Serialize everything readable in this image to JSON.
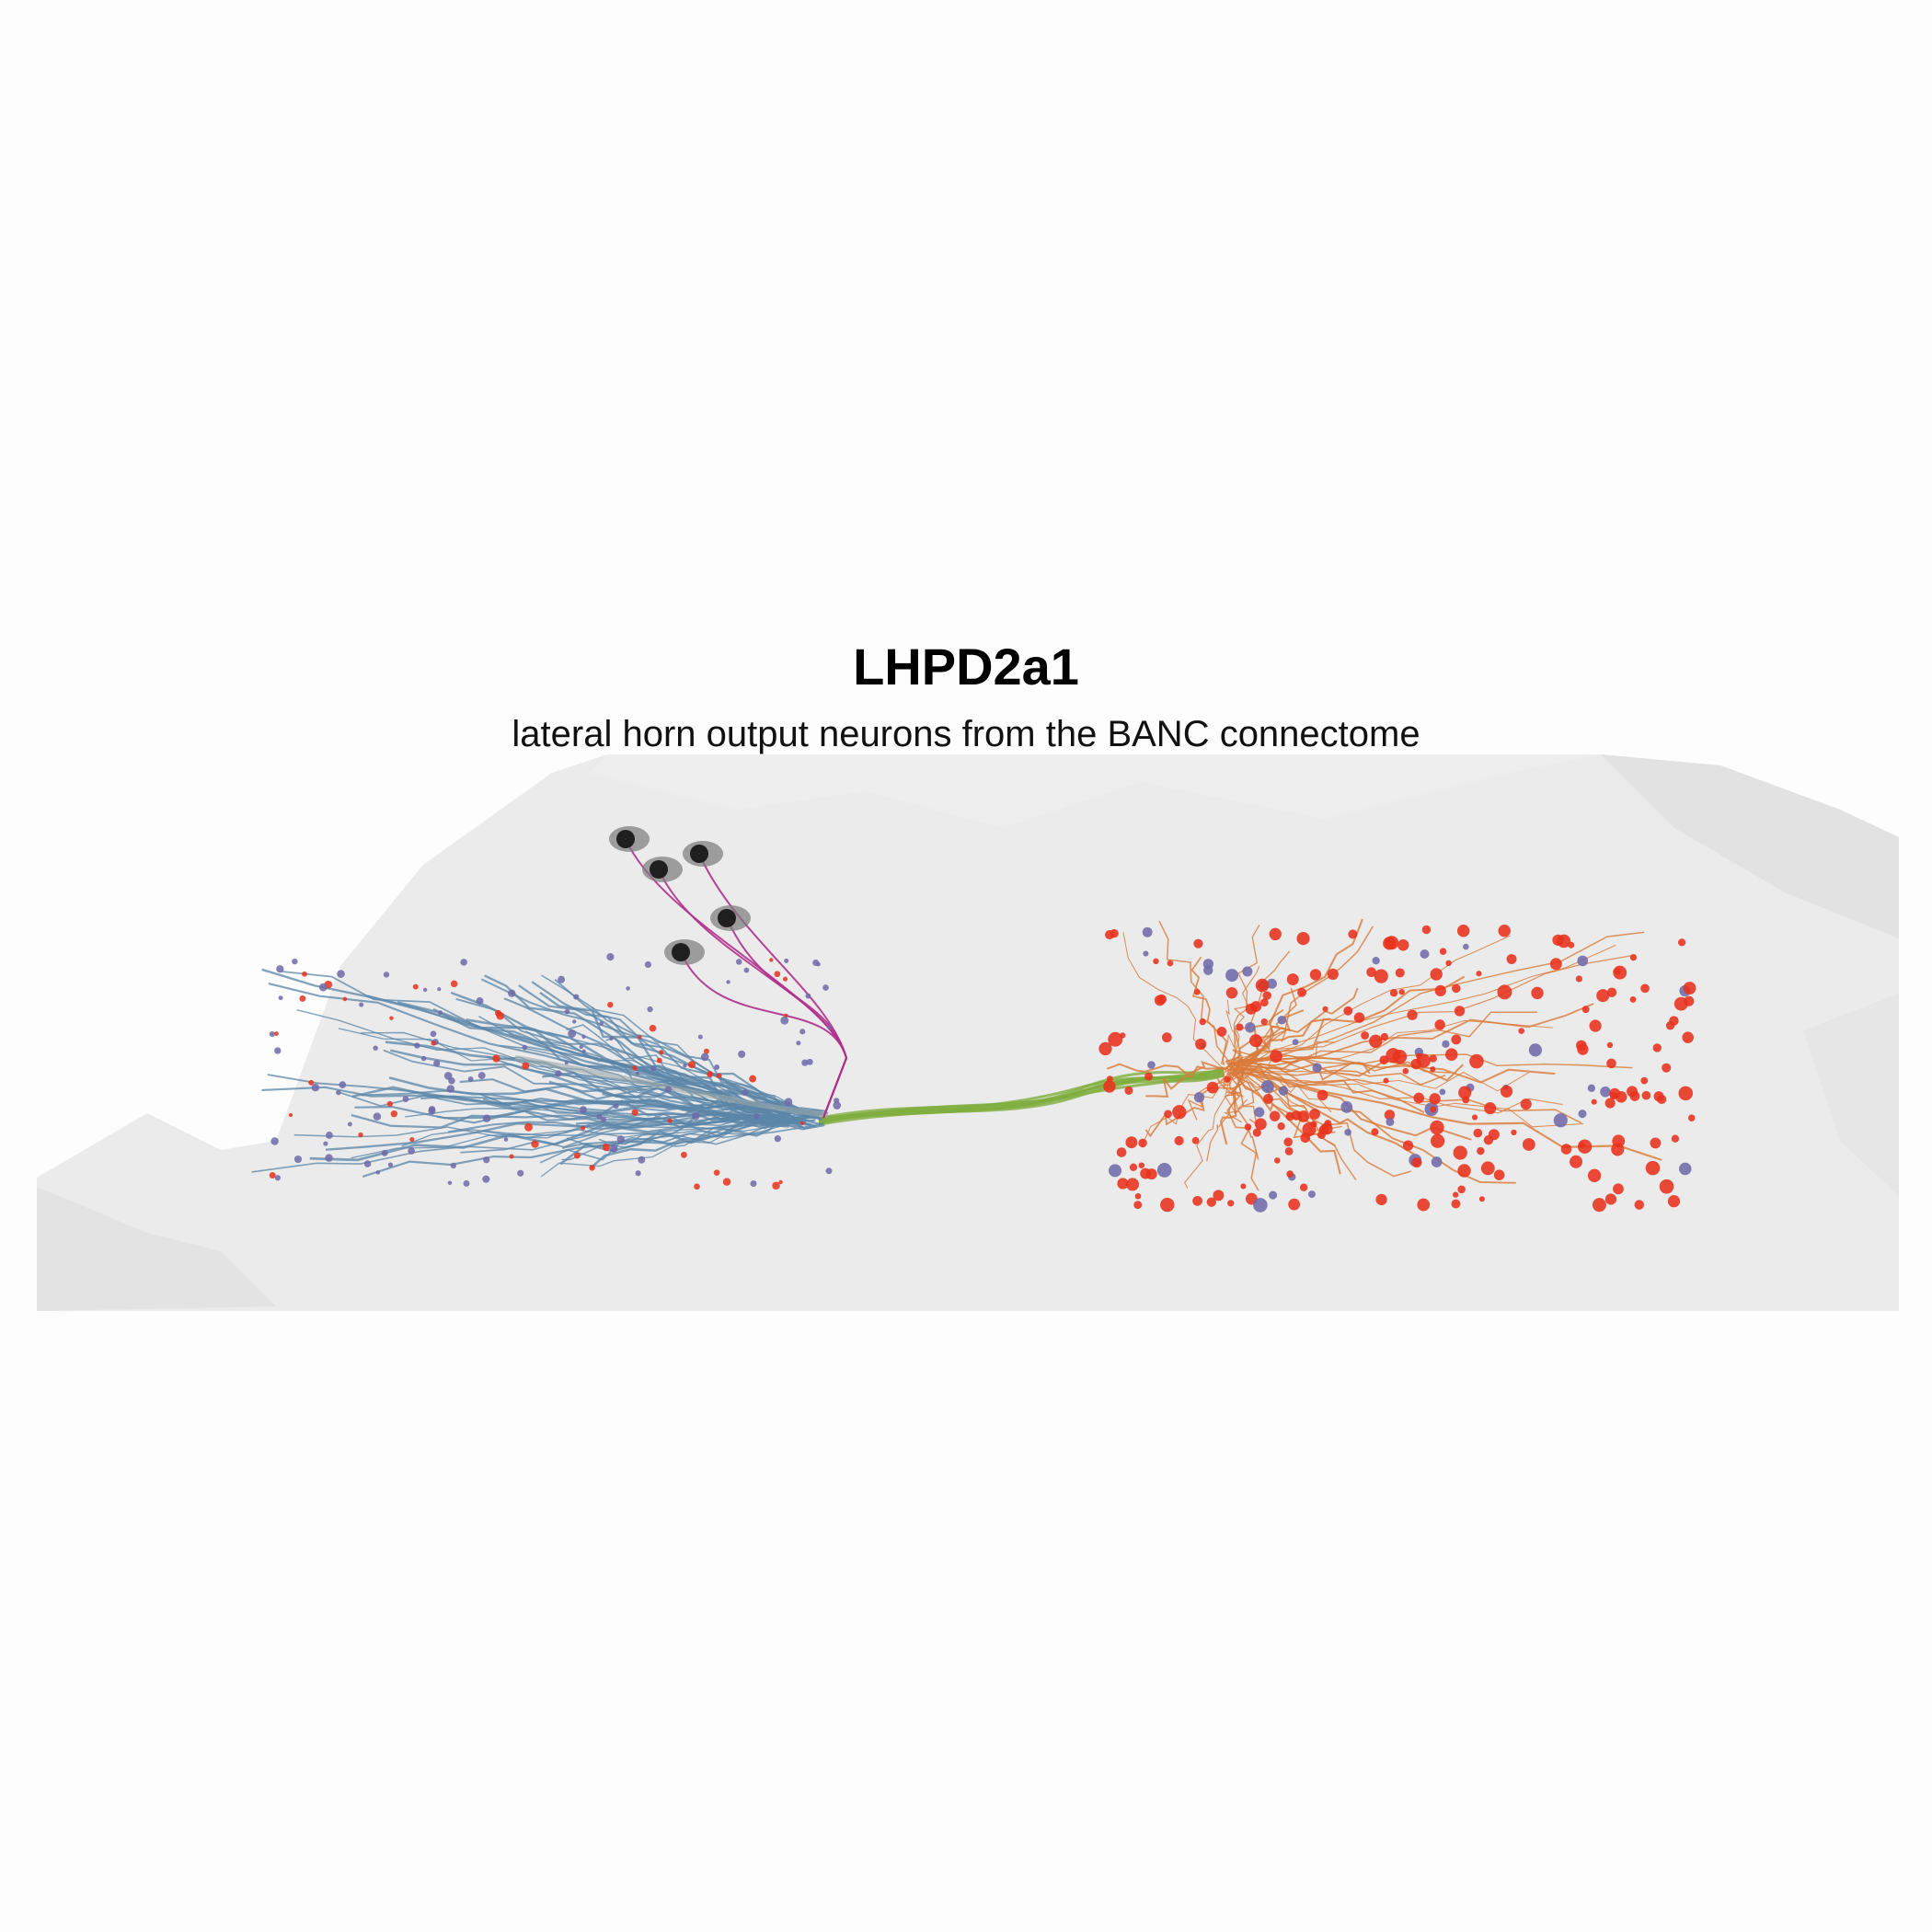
{
  "title": "LHPD2a1",
  "subtitle": "lateral horn output neurons from the BANC connectome",
  "colors": {
    "background": "#fdfdfd",
    "brain_mesh": "#ebebeb",
    "dendrite_blue": "#5b86a8",
    "axon_orange": "#d97a3a",
    "primary_neurite_green": "#7fae3f",
    "cell_body_fiber_magenta": "#b0308c",
    "soma": "#1f1f1f",
    "synapse_red": "#e8311c",
    "synapse_purple": "#6f6aa8"
  },
  "objects": {
    "somata": 5,
    "panel": "neuron-rendering"
  }
}
